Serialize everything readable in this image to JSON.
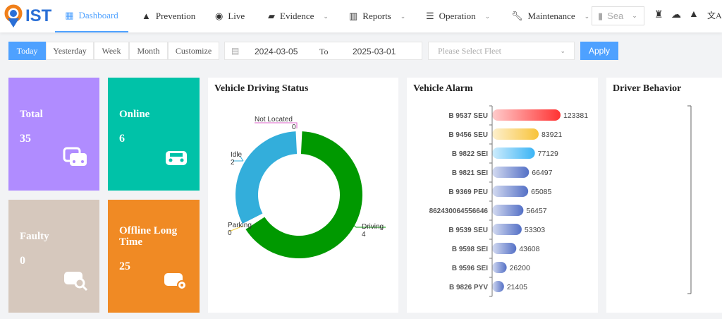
{
  "nav": {
    "logo": "IST",
    "items": [
      {
        "label": "Dashboard",
        "icon": "dashboard-icon",
        "active": true
      },
      {
        "label": "Prevention",
        "icon": "warning-icon"
      },
      {
        "label": "Live",
        "icon": "webcam-icon"
      },
      {
        "label": "Evidence",
        "icon": "folder-search-icon",
        "dropdown": true
      },
      {
        "label": "Reports",
        "icon": "bar-chart-icon",
        "dropdown": true
      },
      {
        "label": "Operation",
        "icon": "sliders-icon",
        "dropdown": true
      },
      {
        "label": "Maintenance",
        "icon": "wrench-icon",
        "dropdown": true
      }
    ],
    "search": "Sea",
    "tools": [
      "alarm-light-icon",
      "cloud-download-icon",
      "alert-icon",
      "translate-icon"
    ]
  },
  "filter": {
    "ranges": [
      "Today",
      "Yesterday",
      "Week",
      "Month",
      "Customize"
    ],
    "active": "Today",
    "from": "2024-03-05",
    "to_label": "To",
    "to": "2025-03-01",
    "fleet_placeholder": "Please Select Fleet",
    "apply": "Apply"
  },
  "cards": [
    {
      "title": "Total",
      "value": "35",
      "color": "#b08cff"
    },
    {
      "title": "Online",
      "value": "6",
      "color": "#00c2a8"
    },
    {
      "title": "Faulty",
      "value": "0",
      "color": "#d6c8bd"
    },
    {
      "title": "Offline Long Time",
      "value": "25",
      "color": "#f08a24"
    }
  ],
  "panels": {
    "status": "Vehicle Driving Status",
    "alarm": "Vehicle Alarm",
    "behavior": "Driver Behavior"
  },
  "chart_data": [
    {
      "type": "pie",
      "title": "Vehicle Driving Status",
      "categories": [
        "Driving",
        "Idle",
        "Parking",
        "Not Located"
      ],
      "values": [
        4,
        2,
        0,
        0
      ],
      "colors": [
        "#009900",
        "#33aedb",
        "#f5d142",
        "#e066cc"
      ]
    },
    {
      "type": "bar",
      "title": "Vehicle Alarm",
      "orientation": "horizontal",
      "categories": [
        "B 9537 SEU",
        "B 9456 SEU",
        "B 9822 SEI",
        "B 9821 SEI",
        "B 9369 PEU",
        "862430064556646",
        "B 9539 SEU",
        "B 9598 SEI",
        "B 9596 SEI",
        "B 9826 PYV"
      ],
      "values": [
        123381,
        83921,
        77129,
        66497,
        65085,
        56457,
        53303,
        43608,
        26200,
        21405
      ],
      "colors": [
        "#ff3333",
        "#f8c33a",
        "#3bb4f5",
        "#5470c6"
      ]
    }
  ]
}
